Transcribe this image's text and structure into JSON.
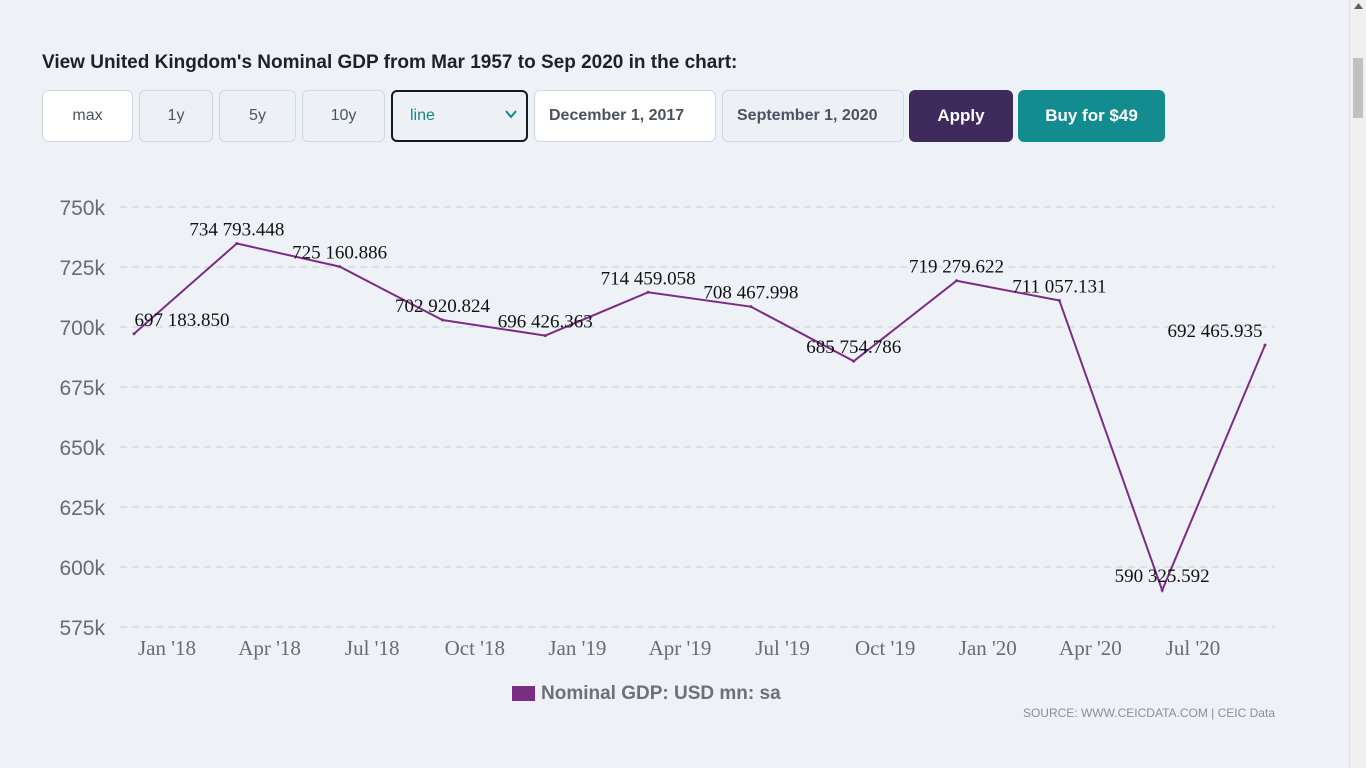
{
  "heading": "View United Kingdom's Nominal GDP from Mar 1957 to Sep 2020 in the chart:",
  "range_buttons": [
    {
      "label": "max",
      "active": true
    },
    {
      "label": "1y",
      "active": false
    },
    {
      "label": "5y",
      "active": false
    },
    {
      "label": "10y",
      "active": false
    }
  ],
  "chart_type_select": {
    "value": "line"
  },
  "date_from": "December 1, 2017",
  "date_to": "September 1, 2020",
  "apply_label": "Apply",
  "buy_label": "Buy for $49",
  "source": "SOURCE: WWW.CEICDATA.COM | CEIC Data",
  "chart_data": {
    "type": "line",
    "title": "",
    "xlabel": "",
    "ylabel": "",
    "series": [
      {
        "name": "Nominal GDP: USD mn: sa",
        "color": "#7b2d82",
        "x": [
          "Dec 2017",
          "Mar 2018",
          "Jun 2018",
          "Sep 2018",
          "Dec 2018",
          "Mar 2019",
          "Jun 2019",
          "Sep 2019",
          "Dec 2019",
          "Mar 2020",
          "Jun 2020",
          "Sep 2020"
        ],
        "values": [
          697183.85,
          734793.448,
          725160.886,
          702920.824,
          696426.363,
          714459.058,
          708467.998,
          685754.786,
          719279.622,
          711057.131,
          590325.592,
          692465.935
        ],
        "labels": [
          "697 183.850",
          "734 793.448",
          "725 160.886",
          "702 920.824",
          "696 426.363",
          "714 459.058",
          "708 467.998",
          "685 754.786",
          "719 279.622",
          "711 057.131",
          "590 325.592",
          "692 465.935"
        ]
      }
    ],
    "x_ticks": [
      "Jan '18",
      "Apr '18",
      "Jul '18",
      "Oct '18",
      "Jan '19",
      "Apr '19",
      "Jul '19",
      "Oct '19",
      "Jan '20",
      "Apr '20",
      "Jul '20"
    ],
    "y_ticks": [
      575000,
      600000,
      625000,
      650000,
      675000,
      700000,
      725000,
      750000
    ],
    "y_tick_labels": [
      "575k",
      "600k",
      "625k",
      "650k",
      "675k",
      "700k",
      "725k",
      "750k"
    ],
    "ylim": [
      575000,
      750000
    ],
    "grid": true,
    "legend_position": "bottom"
  }
}
